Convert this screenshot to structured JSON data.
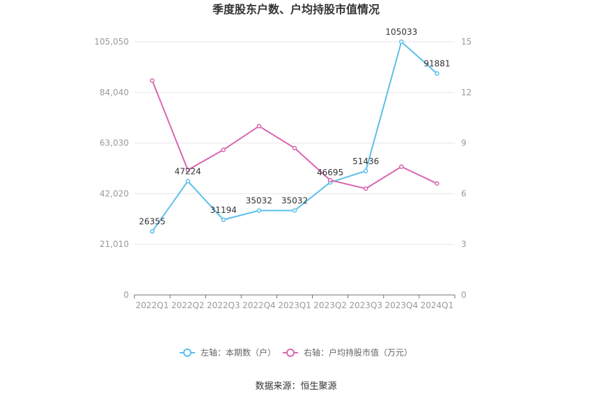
{
  "chart_data": {
    "type": "line",
    "title": "季度股东户数、户均持股市值情况",
    "categories": [
      "2022Q1",
      "2022Q2",
      "2022Q3",
      "2022Q4",
      "2023Q1",
      "2023Q2",
      "2023Q3",
      "2023Q4",
      "2024Q1"
    ],
    "series": [
      {
        "name": "左轴：本期数（户）",
        "axis": "left",
        "color": "#5bc0ea",
        "values": [
          26355,
          47224,
          31194,
          35032,
          35032,
          46695,
          51436,
          105033,
          91881
        ],
        "labels": [
          "26355",
          "47224",
          "31194",
          "35032",
          "35032",
          "46695",
          "51436",
          "105033",
          "91881"
        ]
      },
      {
        "name": "右轴：户均持股市值（万元）",
        "axis": "right",
        "color": "#d966b0",
        "values": [
          12.7,
          7.4,
          8.6,
          10.0,
          8.7,
          6.8,
          6.3,
          7.6,
          6.6
        ]
      }
    ],
    "left_axis": {
      "ylim": [
        0,
        105050
      ],
      "ticks": [
        0,
        21010,
        42020,
        63030,
        84040,
        105050
      ],
      "tick_labels": [
        "0",
        "21,010",
        "42,020",
        "63,030",
        "84,040",
        "105,050"
      ]
    },
    "right_axis": {
      "ylim": [
        0,
        15
      ],
      "ticks": [
        0,
        3,
        6,
        9,
        12,
        15
      ],
      "tick_labels": [
        "0",
        "3",
        "6",
        "9",
        "12",
        "15"
      ]
    },
    "grid": true,
    "legend_position": "bottom",
    "source": "数据来源：恒生聚源"
  }
}
